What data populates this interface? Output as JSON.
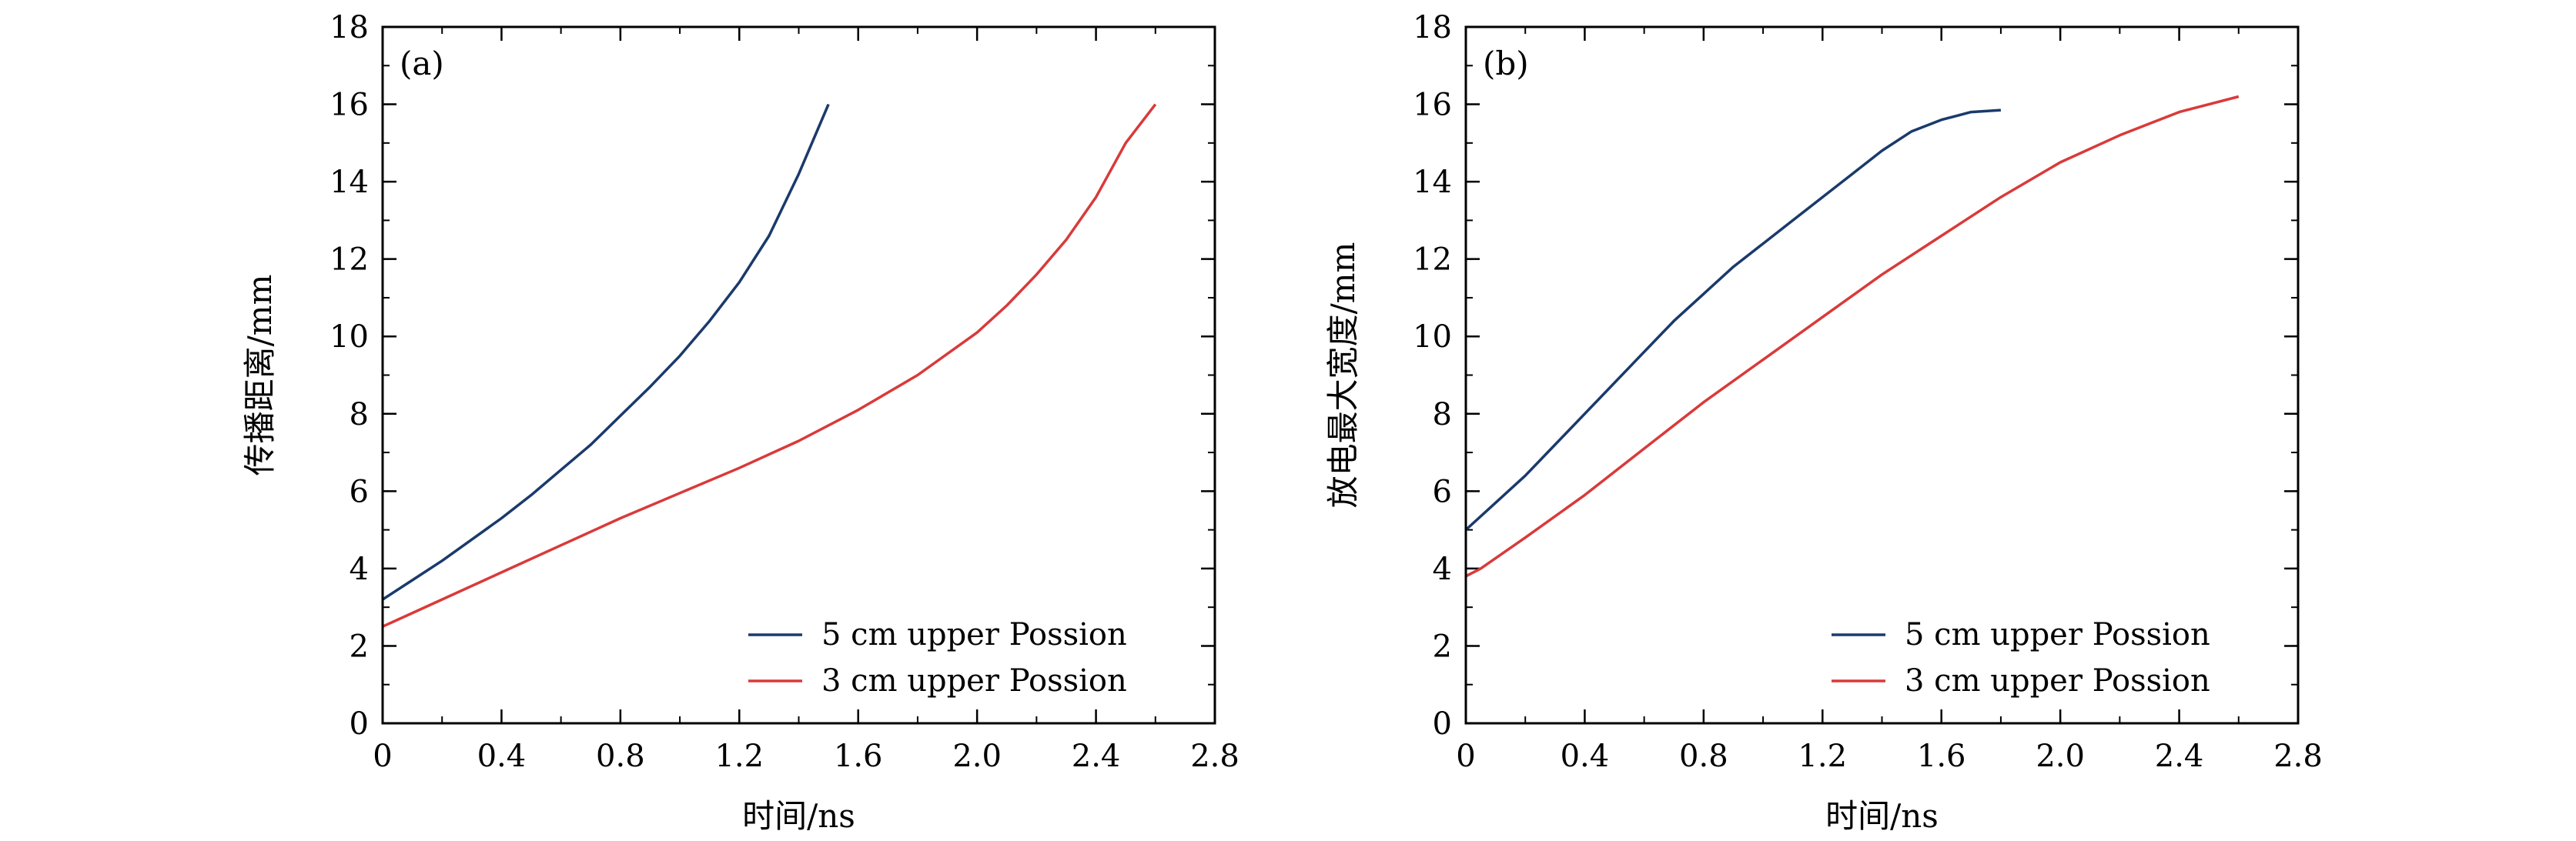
{
  "chart_data": [
    {
      "type": "line",
      "panel_label": "(a)",
      "xlabel": "时间/ns",
      "ylabel": "传播距离/mm",
      "xlim": [
        0,
        2.8
      ],
      "ylim": [
        0,
        18
      ],
      "xticks": [
        "0",
        "0.4",
        "0.8",
        "1.2",
        "1.6",
        "2.0",
        "2.4",
        "2.8"
      ],
      "yticks": [
        "0",
        "2",
        "4",
        "6",
        "8",
        "10",
        "12",
        "14",
        "16",
        "18"
      ],
      "legend_position": "bottom-right",
      "series": [
        {
          "name": "5 cm upper Possion",
          "color": "#1a3a6b",
          "x": [
            0,
            0.1,
            0.2,
            0.3,
            0.4,
            0.5,
            0.6,
            0.7,
            0.8,
            0.9,
            1.0,
            1.1,
            1.2,
            1.3,
            1.4,
            1.5
          ],
          "y": [
            3.2,
            3.7,
            4.2,
            4.75,
            5.3,
            5.9,
            6.55,
            7.2,
            7.95,
            8.7,
            9.5,
            10.4,
            11.4,
            12.6,
            14.2,
            16.0
          ]
        },
        {
          "name": "3 cm upper Possion",
          "color": "#d93a3a",
          "x": [
            0,
            0.2,
            0.4,
            0.6,
            0.8,
            1.0,
            1.2,
            1.4,
            1.6,
            1.8,
            2.0,
            2.1,
            2.2,
            2.3,
            2.4,
            2.5,
            2.6
          ],
          "y": [
            2.5,
            3.2,
            3.9,
            4.6,
            5.3,
            5.95,
            6.6,
            7.3,
            8.1,
            9.0,
            10.1,
            10.8,
            11.6,
            12.5,
            13.6,
            15.0,
            16.0
          ]
        }
      ]
    },
    {
      "type": "line",
      "panel_label": "(b)",
      "xlabel": "时间/ns",
      "ylabel": "放电最大宽度/mm",
      "xlim": [
        0,
        2.8
      ],
      "ylim": [
        0,
        18
      ],
      "xticks": [
        "0",
        "0.4",
        "0.8",
        "1.2",
        "1.6",
        "2.0",
        "2.4",
        "2.8"
      ],
      "yticks": [
        "0",
        "2",
        "4",
        "6",
        "8",
        "10",
        "12",
        "14",
        "16",
        "18"
      ],
      "legend_position": "bottom-right",
      "series": [
        {
          "name": "5 cm upper Possion",
          "color": "#1a3a6b",
          "x": [
            0,
            0.1,
            0.2,
            0.3,
            0.4,
            0.5,
            0.6,
            0.7,
            0.8,
            0.9,
            1.0,
            1.1,
            1.2,
            1.3,
            1.4,
            1.5,
            1.6,
            1.7,
            1.8
          ],
          "y": [
            5.0,
            5.7,
            6.4,
            7.2,
            8.0,
            8.8,
            9.6,
            10.4,
            11.1,
            11.8,
            12.4,
            13.0,
            13.6,
            14.2,
            14.8,
            15.3,
            15.6,
            15.8,
            15.85
          ]
        },
        {
          "name": "3 cm upper Possion",
          "color": "#d93a3a",
          "x": [
            0,
            0.05,
            0.2,
            0.4,
            0.6,
            0.8,
            1.0,
            1.2,
            1.4,
            1.6,
            1.8,
            2.0,
            2.2,
            2.4,
            2.6
          ],
          "y": [
            3.8,
            4.0,
            4.8,
            5.9,
            7.1,
            8.3,
            9.4,
            10.5,
            11.6,
            12.6,
            13.6,
            14.5,
            15.2,
            15.8,
            16.2
          ]
        }
      ]
    }
  ]
}
